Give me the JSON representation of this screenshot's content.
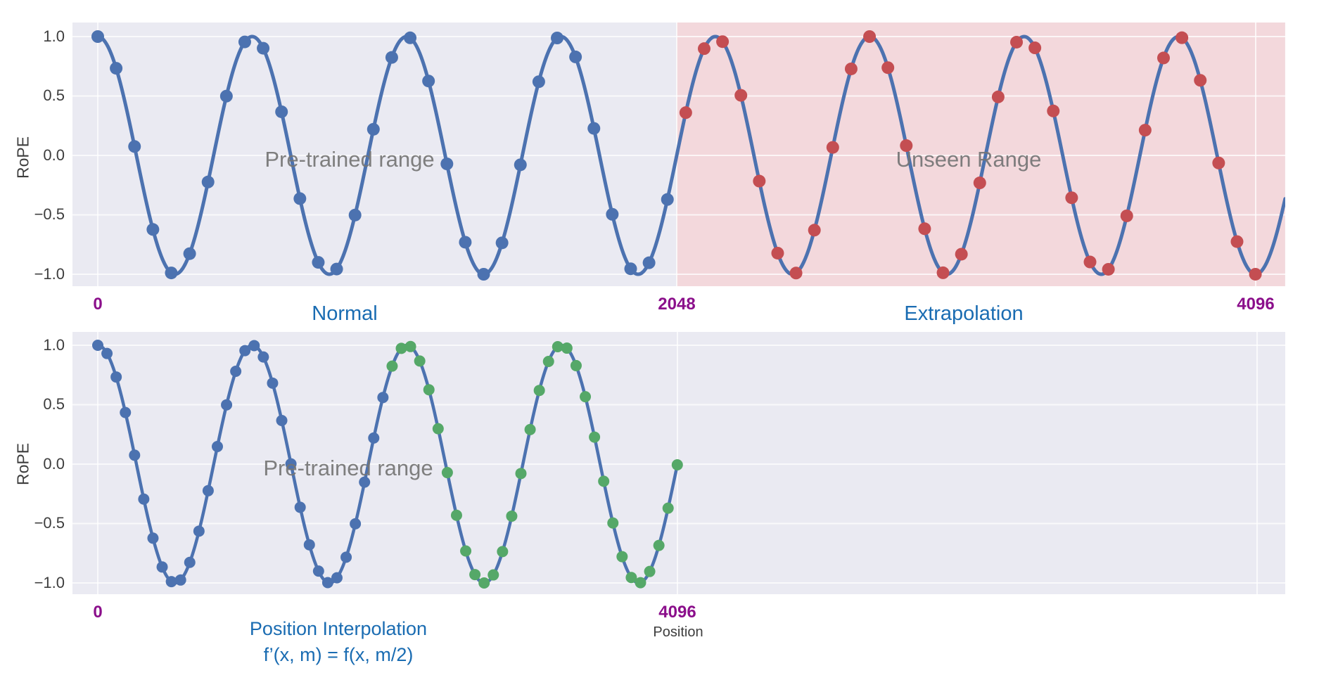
{
  "figure": {
    "background_color": "#FFFFFF",
    "plot_background_color": "#EAEAF2",
    "gridline_color": "#FFFFFF"
  },
  "palette": {
    "curve_blue": "#4C72B0",
    "marker_blue": "#4C72B0",
    "marker_red": "#C44E52",
    "marker_green": "#55A868",
    "unseen_region_pink": "rgba(252,198,198,0.5)",
    "tick_purple": "#8B0F8B",
    "label_blue": "#1A6CB2",
    "annotation_gray": "#757575",
    "axis_text_gray": "#3D3D3D"
  },
  "chart_data": [
    {
      "name": "normal-extrapolation-panel",
      "type": "line",
      "ylabel": "RoPE",
      "ytick_values": [
        1.0,
        0.5,
        0.0,
        -0.5,
        -1.0
      ],
      "ytick_labels": [
        "1.0",
        "0.5",
        "0.0",
        "−0.5",
        "−1.0"
      ],
      "ylim": [
        -1.12,
        1.12
      ],
      "xlim": [
        -90,
        4200
      ],
      "grid": true,
      "xticks": [
        {
          "value": 0,
          "label": "0"
        },
        {
          "value": 2048,
          "label": "2048"
        },
        {
          "value": 4096,
          "label": "4096"
        }
      ],
      "range_labels": [
        {
          "text": "Normal",
          "position": 875
        },
        {
          "text": "Extrapolation",
          "position": 3063
        }
      ],
      "annotations": [
        {
          "text": "Pre-trained range",
          "position": 890,
          "value": -0.04
        },
        {
          "text": "Unseen Range",
          "position": 3080,
          "value": -0.04
        }
      ],
      "curve": {
        "formula": "RoPE(m) = cos(2π · 7.5 · m / 4096)",
        "cycles_per_4096": 7.5,
        "amplitude": 1.0,
        "draw_range": [
          0,
          4200
        ],
        "color": "#4C72B0"
      },
      "markers": {
        "position_step": 65,
        "first": 0,
        "last": 4095,
        "segments": [
          {
            "name": "pre-trained positions",
            "from": 0,
            "to": 2048,
            "color": "#4C72B0"
          },
          {
            "name": "extrapolated unseen positions",
            "from": 2049,
            "to": 4200,
            "color": "#C44E52"
          }
        ]
      },
      "shaded_region": {
        "name": "unseen-range",
        "from": 2048,
        "to": 4200,
        "color": "rgba(252,198,198,0.5)"
      }
    },
    {
      "name": "position-interpolation-panel",
      "type": "line",
      "ylabel": "RoPE",
      "xlabel": "Position",
      "ytick_values": [
        1.0,
        0.5,
        0.0,
        -0.5,
        -1.0
      ],
      "ytick_labels": [
        "1.0",
        "0.5",
        "0.0",
        "−0.5",
        "−1.0"
      ],
      "ylim": [
        -1.1,
        1.11
      ],
      "xlim": [
        -180,
        8390
      ],
      "grid": true,
      "xticks": [
        {
          "value": 0,
          "label": "0"
        },
        {
          "value": 4096,
          "label": "4096"
        }
      ],
      "extra_gridlines": [
        8192
      ],
      "subtitle_lines": [
        "Position Interpolation",
        "f’(x, m) = f(x, m/2)"
      ],
      "annotations": [
        {
          "text": "Pre-trained range",
          "position": 1770,
          "value": -0.04
        }
      ],
      "curve": {
        "formula": "RoPE(m) = cos(2π · 3.75 · m / 4096)",
        "cycles_per_4096": 3.75,
        "amplitude": 1.0,
        "draw_range": [
          0,
          4096
        ],
        "color": "#4C72B0"
      },
      "markers": {
        "position_step": 65,
        "first": 0,
        "last": 4095,
        "segments": [
          {
            "name": "pre-trained positions",
            "from": 0,
            "to": 2048,
            "color": "#4C72B0"
          },
          {
            "name": "interpolated positions",
            "from": 2049,
            "to": 4200,
            "color": "#55A868"
          }
        ]
      }
    }
  ]
}
